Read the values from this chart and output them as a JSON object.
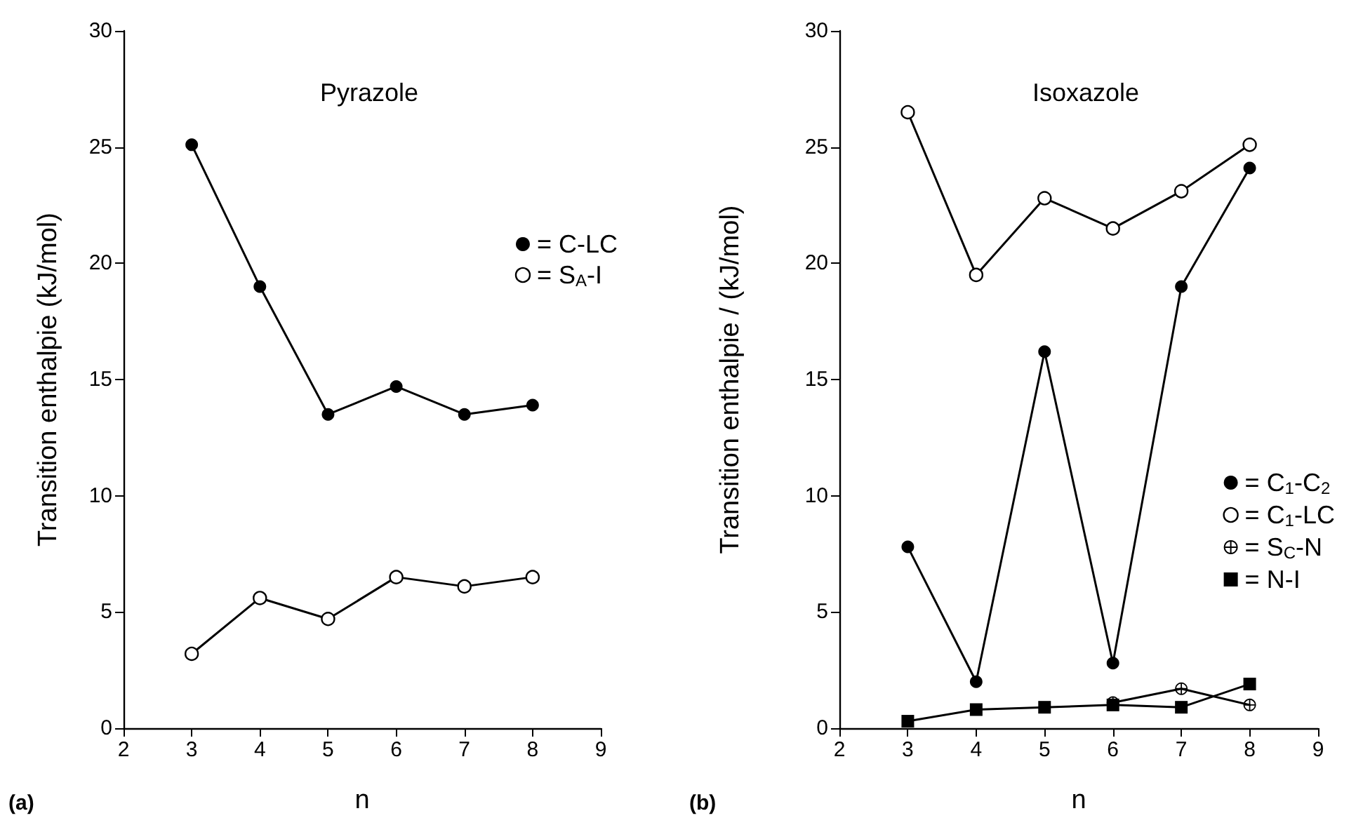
{
  "chart_data": [
    {
      "type": "line",
      "title": "Pyrazole",
      "xlabel": "n",
      "ylabel": "Transition enthalpie (kJ/mol)",
      "annotations": [
        "(a)"
      ],
      "x": [
        3,
        4,
        5,
        6,
        7,
        8
      ],
      "xlim": [
        2,
        9
      ],
      "xticks": [
        2,
        3,
        4,
        5,
        6,
        7,
        8,
        9
      ],
      "ylim": [
        0,
        30
      ],
      "yticks": [
        0,
        5,
        10,
        15,
        20,
        25,
        30
      ],
      "grid": false,
      "legend": "right",
      "line_style": "solid",
      "series": [
        {
          "name": "= C-LC",
          "color": "#000000",
          "marker": "circle",
          "values": [
            25.1,
            19.0,
            13.5,
            14.7,
            13.5,
            13.9
          ]
        },
        {
          "name": "= S$_{A}$-I",
          "color": "#000000",
          "marker": "circle",
          "colors": [
            "#ffffff",
            "#ffffff",
            "#ffffff",
            "#ffffff",
            "#ffffff",
            "#ffffff"
          ],
          "values": [
            3.2,
            5.6,
            4.7,
            6.5,
            6.1,
            6.5
          ]
        }
      ]
    },
    {
      "type": "line",
      "title": "Isoxazole",
      "xlabel": "n",
      "ylabel": "Transition enthalpie / (kJ/mol)",
      "annotations": [
        "(b)"
      ],
      "x": [
        3,
        4,
        5,
        6,
        7,
        8
      ],
      "xlim": [
        2,
        9
      ],
      "xticks": [
        2,
        3,
        4,
        5,
        6,
        7,
        8,
        9
      ],
      "ylim": [
        0,
        30
      ],
      "yticks": [
        0,
        5,
        10,
        15,
        20,
        25,
        30
      ],
      "grid": false,
      "legend": "bottom right",
      "line_style": "solid",
      "series": [
        {
          "name": "= C$_{1}$-C$_{2}$",
          "color": "#000000",
          "marker": "circle",
          "values": [
            7.8,
            2.0,
            16.2,
            2.8,
            19.0,
            24.1
          ]
        },
        {
          "name": "= C$_{1}$-LC",
          "color": "#000000",
          "marker": "circle",
          "colors": [
            "#ffffff",
            "#ffffff",
            "#ffffff",
            "#ffffff",
            "#ffffff",
            "#ffffff"
          ],
          "values": [
            26.5,
            19.5,
            22.8,
            21.5,
            23.1,
            25.1
          ]
        },
        {
          "name": "= S$_{C}$-N",
          "color": "#000000",
          "marker": "cross",
          "x": [
            6,
            7,
            8
          ],
          "values": [
            1.1,
            1.7,
            1.0
          ]
        },
        {
          "name": "= N-I",
          "color": "#000000",
          "marker": "square",
          "values": [
            0.3,
            0.8,
            0.9,
            1.0,
            0.9,
            1.9
          ]
        }
      ]
    }
  ]
}
